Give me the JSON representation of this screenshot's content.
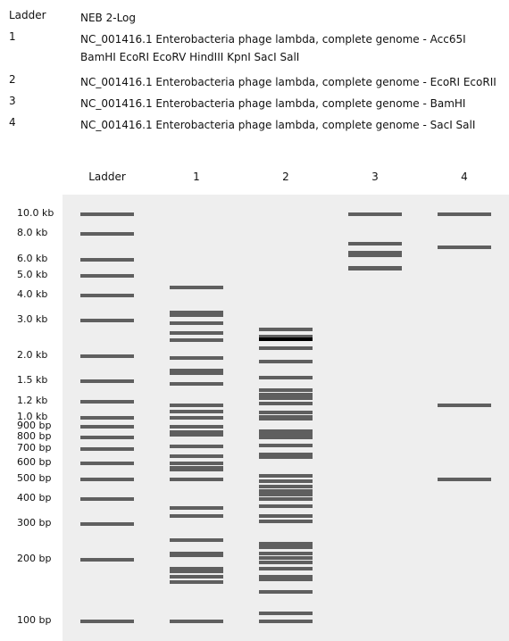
{
  "legend": [
    {
      "key": "Ladder",
      "value": "NEB 2-Log"
    },
    {
      "key": "1",
      "value": "NC_001416.1 Enterobacteria phage lambda, complete genome - Acc65I BamHI EcoRI EcoRV HindIII KpnI SacI SalI"
    },
    {
      "key": "2",
      "value": "NC_001416.1 Enterobacteria phage lambda, complete genome - EcoRI EcoRII"
    },
    {
      "key": "3",
      "value": "NC_001416.1 Enterobacteria phage lambda, complete genome - BamHI"
    },
    {
      "key": "4",
      "value": "NC_001416.1 Enterobacteria phage lambda, complete genome - SacI SalI"
    }
  ],
  "lanes": [
    "Ladder",
    "1",
    "2",
    "3",
    "4"
  ],
  "ladder_labels": [
    "10.0 kb",
    "8.0 kb",
    "6.0 kb",
    "5.0 kb",
    "4.0 kb",
    "3.0 kb",
    "2.0 kb",
    "1.5 kb",
    "1.2 kb",
    "1.0 kb",
    "900 bp",
    "800 bp",
    "700 bp",
    "600 bp",
    "500 bp",
    "400 bp",
    "300 bp",
    "200 bp",
    "100 bp"
  ],
  "chart_data": {
    "type": "gel",
    "size_scale": "log",
    "ladder_sizes_bp": [
      10000,
      8000,
      6000,
      5000,
      4000,
      3000,
      2000,
      1500,
      1200,
      1000,
      900,
      800,
      700,
      600,
      500,
      400,
      300,
      200,
      100
    ],
    "lane_bands_bp": {
      "1": [
        4400,
        3300,
        3200,
        2900,
        2600,
        2400,
        1950,
        1700,
        1650,
        1450,
        1150,
        1070,
        1000,
        900,
        850,
        820,
        720,
        650,
        600,
        570,
        560,
        500,
        360,
        330,
        250,
        215,
        210,
        180,
        175,
        165,
        155,
        100
      ],
      "2": [
        2700,
        2500,
        2420,
        2200,
        1880,
        1560,
        1360,
        1300,
        1250,
        1180,
        1060,
        1010,
        990,
        860,
        830,
        800,
        730,
        660,
        640,
        520,
        490,
        460,
        440,
        420,
        400,
        370,
        330,
        310,
        240,
        230,
        215,
        205,
        195,
        180,
        165,
        160,
        140,
        110,
        100
      ],
      "3": [
        10000,
        7200,
        6500,
        6300,
        5500,
        5400
      ],
      "4": [
        10000,
        6900,
        1150,
        500
      ]
    },
    "dark_bands": {
      "2": [
        2420
      ]
    }
  }
}
